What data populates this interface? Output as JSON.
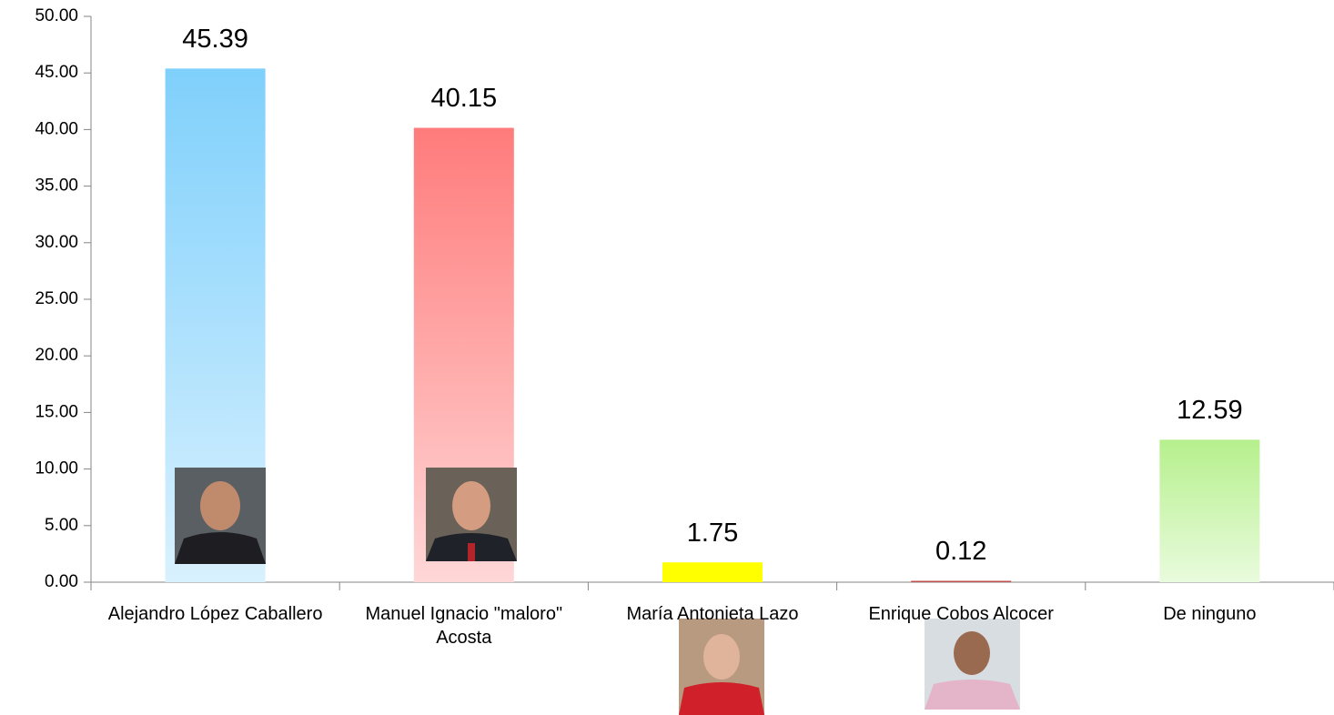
{
  "chart_data": {
    "type": "bar",
    "categories": [
      "Alejandro López Caballero",
      "Manuel Ignacio \"maloro\" Acosta",
      "María Antonieta Lazo",
      "Enrique Cobos Alcocer",
      "De ninguno"
    ],
    "values": [
      45.39,
      40.15,
      1.75,
      0.12,
      12.59
    ],
    "colors": [
      "#7fd0fc",
      "#ff7b7b",
      "#ffff00",
      "#c0504d",
      "#b6f08d"
    ],
    "ylim": [
      0,
      50
    ],
    "yticks": [
      {
        "value": 0,
        "label": "0.00"
      },
      {
        "value": 5,
        "label": "5.00"
      },
      {
        "value": 10,
        "label": "10.00"
      },
      {
        "value": 15,
        "label": "15.00"
      },
      {
        "value": 20,
        "label": "20.00"
      },
      {
        "value": 25,
        "label": "25.00"
      },
      {
        "value": 30,
        "label": "30.00"
      },
      {
        "value": 35,
        "label": "35.00"
      },
      {
        "value": 40,
        "label": "40.00"
      },
      {
        "value": 45,
        "label": "45.00"
      },
      {
        "value": 50,
        "label": "50.00"
      }
    ],
    "grid": false
  }
}
